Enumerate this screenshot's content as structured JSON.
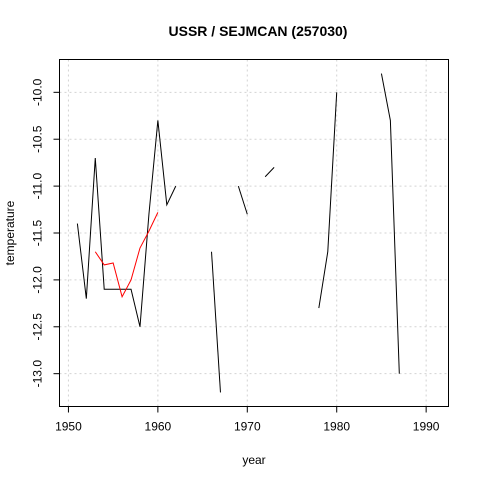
{
  "chart_data": {
    "type": "line",
    "title": "USSR / SEJMCAN (257030)",
    "xlabel": "year",
    "ylabel": "temperature",
    "xlim": [
      1949,
      1992.5
    ],
    "ylim": [
      -13.35,
      -9.65
    ],
    "x_ticks": [
      1950,
      1960,
      1970,
      1980,
      1990
    ],
    "y_ticks": [
      -13.0,
      -12.5,
      -12.0,
      -11.5,
      -11.0,
      -10.5,
      -10.0
    ],
    "grid": true,
    "series": [
      {
        "color": "#000000",
        "x": [
          1951,
          1952,
          1953,
          1954,
          1955,
          1956,
          1957,
          1958,
          1959,
          1960,
          1961,
          1962,
          1963,
          1964,
          1965,
          1966,
          1967,
          1968,
          1969,
          1970,
          1971,
          1972,
          1973,
          1974,
          1975,
          1976,
          1977,
          1978,
          1979,
          1980,
          1981,
          1982,
          1983,
          1984,
          1985,
          1986,
          1987
        ],
        "values": [
          -11.4,
          -12.2,
          -10.7,
          -12.1,
          -12.1,
          -12.1,
          -12.1,
          -12.5,
          -11.3,
          -10.3,
          -11.2,
          -11.0,
          null,
          null,
          null,
          -11.7,
          -13.2,
          null,
          -11.0,
          -11.3,
          null,
          -10.9,
          -10.8,
          null,
          null,
          null,
          null,
          -12.3,
          -11.7,
          -10.0,
          null,
          null,
          null,
          null,
          -9.8,
          -10.3,
          -13.0
        ]
      },
      {
        "color": "#ff0000",
        "x": [
          1953,
          1954,
          1955,
          1956,
          1957,
          1958,
          1959,
          1960
        ],
        "values": [
          -11.7,
          -11.84,
          -11.82,
          -12.18,
          -12.0,
          -11.66,
          -11.48,
          -11.28
        ]
      }
    ]
  }
}
